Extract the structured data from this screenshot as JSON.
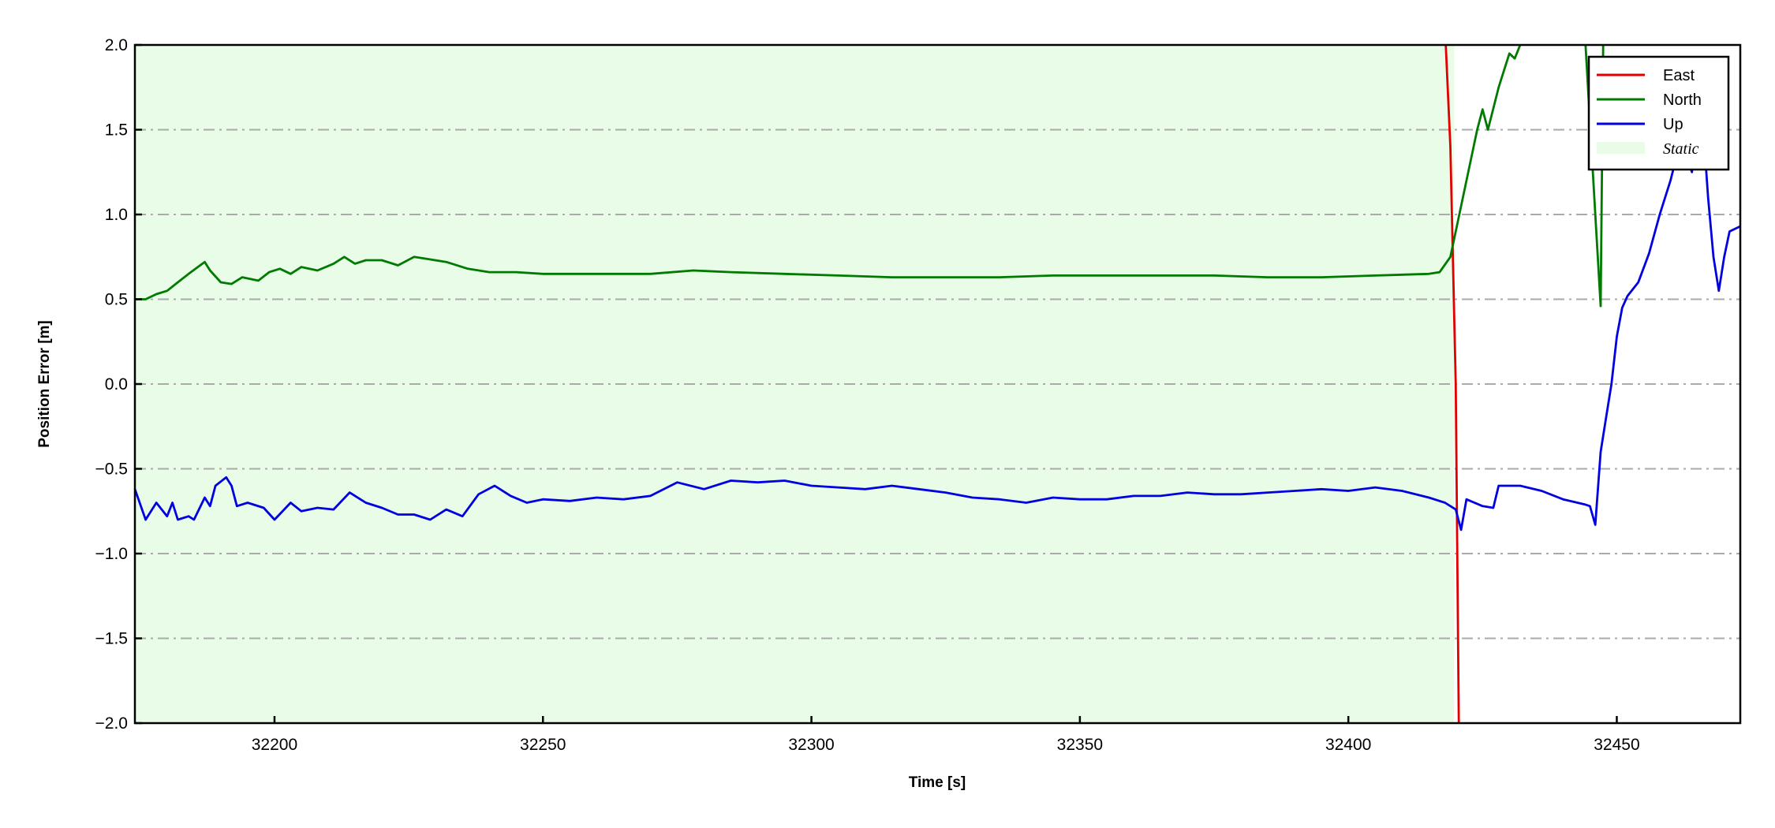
{
  "chart_data": {
    "type": "line",
    "title": "",
    "xlabel": "Time [s]",
    "ylabel": "Position Error [m]",
    "xlim": [
      32174,
      32473
    ],
    "ylim": [
      -2.0,
      2.0
    ],
    "xticks": [
      32200,
      32250,
      32300,
      32350,
      32400,
      32450
    ],
    "xtick_labels": [
      "32200",
      "32250",
      "32300",
      "32350",
      "32400",
      "32450"
    ],
    "yticks": [
      -2.0,
      -1.5,
      -1.0,
      -0.5,
      0.0,
      0.5,
      1.0,
      1.5,
      2.0
    ],
    "ytick_labels": [
      "−2.0",
      "−1.5",
      "−1.0",
      "−0.5",
      "0.0",
      "0.5",
      "1.0",
      "1.5",
      "2.0"
    ],
    "grid": "horizontal dash-dot",
    "legend_position": "top-right",
    "static_region": {
      "label": "Static",
      "x_start": 32174,
      "x_end": 32419.7,
      "color": "#e8fce8"
    },
    "series": [
      {
        "name": "East",
        "color": "#e00000",
        "x": [
          32418,
          32419,
          32420,
          32420.6
        ],
        "y": [
          2.1,
          1.4,
          0.0,
          -2.1
        ]
      },
      {
        "name": "North",
        "color": "#007a00",
        "x": [
          32174,
          32176,
          32178,
          32180,
          32182,
          32184,
          32187,
          32188,
          32190,
          32192,
          32194,
          32197,
          32199,
          32201,
          32203,
          32205,
          32208,
          32211,
          32213,
          32215,
          32217,
          32220,
          32223,
          32226,
          32228,
          32232,
          32236,
          32240,
          32245,
          32250,
          32260,
          32270,
          32278,
          32285,
          32295,
          32305,
          32315,
          32325,
          32335,
          32345,
          32355,
          32365,
          32375,
          32385,
          32395,
          32405,
          32415,
          32417,
          32419,
          32420,
          32422,
          32424,
          32425,
          32426,
          32428,
          32430,
          32431,
          32432,
          32433,
          null,
          32444,
          32446,
          32447,
          32447.5
        ],
        "y": [
          0.5,
          0.5,
          0.53,
          0.55,
          0.6,
          0.65,
          0.72,
          0.67,
          0.6,
          0.59,
          0.63,
          0.61,
          0.66,
          0.68,
          0.65,
          0.69,
          0.67,
          0.71,
          0.75,
          0.71,
          0.73,
          0.73,
          0.7,
          0.75,
          0.74,
          0.72,
          0.68,
          0.66,
          0.66,
          0.65,
          0.65,
          0.65,
          0.67,
          0.66,
          0.65,
          0.64,
          0.63,
          0.63,
          0.63,
          0.64,
          0.64,
          0.64,
          0.64,
          0.63,
          0.63,
          0.64,
          0.65,
          0.66,
          0.75,
          0.9,
          1.2,
          1.5,
          1.62,
          1.5,
          1.75,
          1.95,
          1.92,
          2.0,
          2.1,
          null,
          2.1,
          1.0,
          0.46,
          2.1
        ]
      },
      {
        "name": "Up",
        "color": "#0000e0",
        "x": [
          32174,
          32176,
          32178,
          32180,
          32181,
          32182,
          32184,
          32185,
          32187,
          32188,
          32189,
          32191,
          32192,
          32193,
          32195,
          32198,
          32200,
          32203,
          32205,
          32208,
          32211,
          32214,
          32217,
          32220,
          32223,
          32226,
          32229,
          32232,
          32235,
          32238,
          32241,
          32244,
          32247,
          32250,
          32255,
          32260,
          32265,
          32270,
          32275,
          32280,
          32285,
          32290,
          32295,
          32300,
          32305,
          32310,
          32315,
          32320,
          32325,
          32330,
          32335,
          32340,
          32345,
          32350,
          32355,
          32360,
          32365,
          32370,
          32375,
          32380,
          32385,
          32390,
          32395,
          32400,
          32405,
          32410,
          32415,
          32418,
          32420,
          32421,
          32422,
          32425,
          32427,
          32428,
          32432,
          32436,
          32440,
          32444,
          32445,
          32446,
          32447,
          32448,
          32449,
          32450,
          32451,
          32452,
          32454,
          32456,
          32458,
          32460,
          32462,
          32464,
          32465,
          32466,
          32467,
          32468,
          32469,
          32470,
          32471,
          32473
        ],
        "y": [
          -0.62,
          -0.8,
          -0.7,
          -0.78,
          -0.7,
          -0.8,
          -0.78,
          -0.8,
          -0.67,
          -0.72,
          -0.6,
          -0.55,
          -0.6,
          -0.72,
          -0.7,
          -0.73,
          -0.8,
          -0.7,
          -0.75,
          -0.73,
          -0.74,
          -0.64,
          -0.7,
          -0.73,
          -0.77,
          -0.77,
          -0.8,
          -0.74,
          -0.78,
          -0.65,
          -0.6,
          -0.66,
          -0.7,
          -0.68,
          -0.69,
          -0.67,
          -0.68,
          -0.66,
          -0.58,
          -0.62,
          -0.57,
          -0.58,
          -0.57,
          -0.6,
          -0.61,
          -0.62,
          -0.6,
          -0.62,
          -0.64,
          -0.67,
          -0.68,
          -0.7,
          -0.67,
          -0.68,
          -0.68,
          -0.66,
          -0.66,
          -0.64,
          -0.65,
          -0.65,
          -0.64,
          -0.63,
          -0.62,
          -0.63,
          -0.61,
          -0.63,
          -0.67,
          -0.7,
          -0.74,
          -0.86,
          -0.68,
          -0.72,
          -0.73,
          -0.6,
          -0.6,
          -0.63,
          -0.68,
          -0.71,
          -0.72,
          -0.83,
          -0.4,
          -0.2,
          0.0,
          0.28,
          0.45,
          0.52,
          0.6,
          0.77,
          1.0,
          1.2,
          1.45,
          1.25,
          1.5,
          1.55,
          1.1,
          0.75,
          0.55,
          0.75,
          0.9,
          0.93
        ]
      }
    ],
    "legend": [
      "East",
      "North",
      "Up",
      "Static"
    ]
  }
}
